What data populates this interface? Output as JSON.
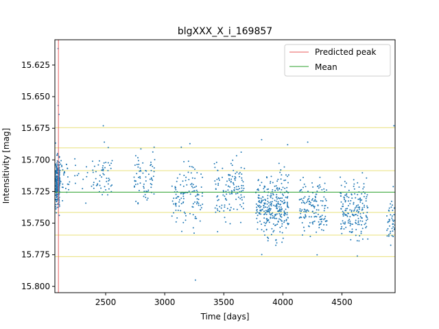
{
  "chart_data": {
    "type": "scatter",
    "title": "blgXXX_X_i_169857",
    "xlabel": "Time [days]",
    "ylabel": "Intensitivity [mag]",
    "xlim": [
      2070,
      4950
    ],
    "ylim": [
      15.605,
      15.805
    ],
    "y_inverted": true,
    "xticks": [
      2500,
      3000,
      3500,
      4000,
      4500
    ],
    "xtick_labels": [
      "2500",
      "3000",
      "3500",
      "4000",
      "4500"
    ],
    "yticks": [
      15.625,
      15.65,
      15.675,
      15.7,
      15.725,
      15.75,
      15.775,
      15.8
    ],
    "ytick_labels": [
      "15.625",
      "15.650",
      "15.675",
      "15.700",
      "15.725",
      "15.750",
      "15.775",
      "15.800"
    ],
    "grid": false,
    "legend_position": "top-right",
    "predicted_peak": {
      "name": "Predicted peak",
      "x": 2100,
      "color": "#e8585a"
    },
    "mean": {
      "name": "Mean",
      "y": 15.7255,
      "color": "#2ca02c"
    },
    "bands": {
      "color": "#e8e07a",
      "y": [
        15.6745,
        15.6905,
        15.7085,
        15.7415,
        15.7595,
        15.7765
      ]
    },
    "points_color": "#1f77b4",
    "clusters": [
      {
        "x_min": 2075,
        "x_max": 2110,
        "y_mean": 15.718,
        "y_sd": 0.009,
        "n": 260
      },
      {
        "x_min": 2110,
        "x_max": 2200,
        "y_mean": 15.712,
        "y_sd": 0.009,
        "n": 30
      },
      {
        "x_min": 2230,
        "x_max": 2350,
        "y_mean": 15.712,
        "y_sd": 0.008,
        "n": 12
      },
      {
        "x_min": 2380,
        "x_max": 2560,
        "y_mean": 15.712,
        "y_sd": 0.009,
        "n": 55
      },
      {
        "x_min": 2740,
        "x_max": 2920,
        "y_mean": 15.713,
        "y_sd": 0.009,
        "n": 70
      },
      {
        "x_min": 3060,
        "x_max": 3320,
        "y_mean": 15.727,
        "y_sd": 0.014,
        "n": 120
      },
      {
        "x_min": 3420,
        "x_max": 3680,
        "y_mean": 15.723,
        "y_sd": 0.011,
        "n": 130
      },
      {
        "x_min": 3770,
        "x_max": 4050,
        "y_mean": 15.737,
        "y_sd": 0.012,
        "n": 300
      },
      {
        "x_min": 4140,
        "x_max": 4380,
        "y_mean": 15.736,
        "y_sd": 0.011,
        "n": 150
      },
      {
        "x_min": 4480,
        "x_max": 4720,
        "y_mean": 15.739,
        "y_sd": 0.011,
        "n": 180
      },
      {
        "x_min": 4880,
        "x_max": 4950,
        "y_mean": 15.745,
        "y_sd": 0.01,
        "n": 45
      }
    ],
    "outliers": [
      {
        "x": 2097,
        "y": 15.612
      },
      {
        "x": 2098,
        "y": 15.657
      },
      {
        "x": 2105,
        "y": 15.664
      },
      {
        "x": 2480,
        "y": 15.673
      },
      {
        "x": 3140,
        "y": 15.69
      },
      {
        "x": 3260,
        "y": 15.795
      },
      {
        "x": 3820,
        "y": 15.684
      },
      {
        "x": 4040,
        "y": 15.688
      },
      {
        "x": 4210,
        "y": 15.686
      },
      {
        "x": 4290,
        "y": 15.775
      },
      {
        "x": 4630,
        "y": 15.776
      },
      {
        "x": 4940,
        "y": 15.673
      }
    ]
  }
}
